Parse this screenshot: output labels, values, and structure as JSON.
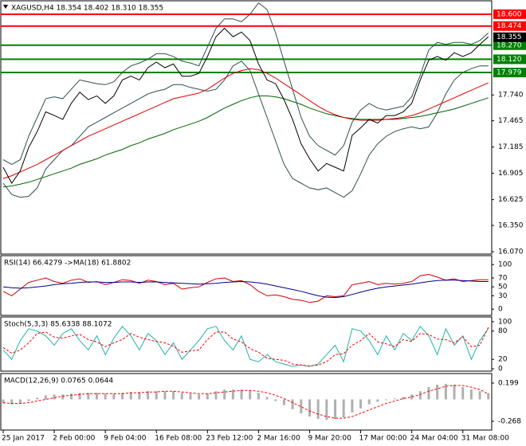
{
  "chart_data": [
    {
      "type": "line",
      "title": "XAGUSD,H4  18.354 18.402 18.310 18.355",
      "categories": [
        "25 Jan 2017",
        null,
        null,
        null,
        null,
        null,
        "2 Feb 00:00",
        null,
        null,
        null,
        null,
        null,
        "9 Feb 04:00",
        null,
        null,
        null,
        null,
        null,
        "16 Feb 08:00",
        null,
        null,
        null,
        null,
        null,
        "23 Feb 12:00",
        null,
        null,
        null,
        null,
        null,
        "2 Mar 16:00",
        null,
        null,
        null,
        null,
        null,
        "9 Mar 20:00",
        null,
        null,
        null,
        null,
        null,
        "17 Mar 00:00",
        null,
        null,
        null,
        null,
        null,
        "24 Mar 04:00",
        null,
        null,
        null,
        null,
        null,
        "31 Mar 08:00",
        null,
        null,
        null
      ],
      "ylim": [
        16.045,
        18.743
      ],
      "yticks": [
        {
          "value": 17.74,
          "label": "17.740"
        },
        17.465,
        17.185,
        16.905,
        16.625,
        {
          "value": 16.35,
          "label": "16.350"
        },
        {
          "value": 16.07,
          "label": "16.070"
        }
      ],
      "series": [
        {
          "color": "#2f4f4f",
          "values": [
            17.05,
            17.0,
            17.05,
            17.3,
            17.5,
            17.7,
            17.72,
            17.7,
            17.8,
            17.9,
            17.88,
            17.86,
            17.85,
            17.88,
            17.98,
            18.05,
            18.08,
            18.12,
            18.18,
            18.18,
            18.15,
            18.1,
            18.08,
            18.05,
            18.25,
            18.45,
            18.55,
            18.55,
            18.52,
            18.6,
            18.72,
            18.65,
            18.4,
            18.1,
            17.8,
            17.5,
            17.3,
            17.2,
            17.15,
            17.1,
            17.2,
            17.45,
            17.58,
            17.65,
            17.6,
            17.58,
            17.6,
            17.62,
            17.72,
            17.95,
            18.22,
            18.3,
            18.28,
            18.3,
            18.3,
            18.28,
            18.32,
            18.4
          ]
        },
        {
          "color": "#2f4f4f",
          "values": [
            16.8,
            16.68,
            16.65,
            16.66,
            16.75,
            16.95,
            17.05,
            17.15,
            17.2,
            17.3,
            17.4,
            17.45,
            17.5,
            17.55,
            17.6,
            17.65,
            17.7,
            17.75,
            17.78,
            17.8,
            17.85,
            17.85,
            17.82,
            17.8,
            17.78,
            17.8,
            17.9,
            18.05,
            18.1,
            18.0,
            17.75,
            17.5,
            17.25,
            17.0,
            16.85,
            16.8,
            16.75,
            16.73,
            16.75,
            16.7,
            16.65,
            16.72,
            16.9,
            17.1,
            17.22,
            17.3,
            17.35,
            17.38,
            17.4,
            17.38,
            17.4,
            17.55,
            17.75,
            17.9,
            17.98,
            18.02,
            18.05,
            18.05
          ]
        },
        {
          "color": "#006400",
          "values": [
            16.76,
            16.77,
            16.79,
            16.81,
            16.84,
            16.87,
            16.9,
            16.93,
            16.96,
            17.0,
            17.03,
            17.06,
            17.1,
            17.13,
            17.16,
            17.2,
            17.23,
            17.27,
            17.3,
            17.33,
            17.37,
            17.4,
            17.43,
            17.46,
            17.5,
            17.55,
            17.6,
            17.64,
            17.68,
            17.71,
            17.73,
            17.73,
            17.72,
            17.7,
            17.67,
            17.64,
            17.6,
            17.57,
            17.54,
            17.52,
            17.5,
            17.49,
            17.48,
            17.48,
            17.48,
            17.48,
            17.48,
            17.49,
            17.5,
            17.51,
            17.53,
            17.55,
            17.57,
            17.59,
            17.62,
            17.65,
            17.68,
            17.71
          ]
        },
        {
          "color": "#e00000",
          "values": [
            16.85,
            16.88,
            16.92,
            16.96,
            17.0,
            17.05,
            17.1,
            17.15,
            17.2,
            17.25,
            17.3,
            17.34,
            17.38,
            17.42,
            17.46,
            17.5,
            17.54,
            17.58,
            17.62,
            17.66,
            17.7,
            17.72,
            17.74,
            17.76,
            17.8,
            17.86,
            17.92,
            17.97,
            18.0,
            18.02,
            18.01,
            17.97,
            17.92,
            17.86,
            17.8,
            17.74,
            17.68,
            17.62,
            17.57,
            17.53,
            17.5,
            17.48,
            17.47,
            17.47,
            17.47,
            17.48,
            17.49,
            17.5,
            17.52,
            17.55,
            17.59,
            17.63,
            17.67,
            17.71,
            17.75,
            17.79,
            17.83,
            17.87
          ]
        },
        {
          "color": "#000000",
          "values": [
            16.97,
            16.8,
            16.93,
            17.18,
            17.35,
            17.56,
            17.52,
            17.48,
            17.65,
            17.77,
            17.69,
            17.73,
            17.65,
            17.73,
            17.9,
            17.94,
            17.9,
            18.03,
            18.09,
            18.03,
            18.07,
            17.94,
            17.94,
            17.97,
            18.15,
            18.36,
            18.45,
            18.36,
            18.41,
            18.32,
            18.07,
            17.9,
            17.86,
            17.69,
            17.48,
            17.22,
            17.06,
            16.93,
            17.01,
            16.97,
            16.93,
            17.31,
            17.39,
            17.48,
            17.44,
            17.52,
            17.52,
            17.56,
            17.65,
            17.9,
            18.11,
            18.15,
            18.11,
            18.19,
            18.15,
            18.19,
            18.28,
            18.36
          ]
        }
      ],
      "levels": [
        {
          "value": 18.6,
          "label": "18.600",
          "color": "#ff0000"
        },
        {
          "value": 18.474,
          "label": "18.474",
          "color": "#ff0000"
        },
        {
          "value": 18.27,
          "label": "18.270",
          "color": "#008000"
        },
        {
          "value": 18.12,
          "label": "18.120",
          "color": "#008000"
        },
        {
          "value": 17.979,
          "label": "17.979",
          "color": "#008000"
        }
      ],
      "last_price": {
        "value": 18.355,
        "label": "18.355",
        "color": "#000000"
      }
    },
    {
      "type": "line",
      "title": "RSI(14) 66.4279  ->MA(18) 61.8802",
      "ylim": [
        -14,
        120
      ],
      "yticks": [
        100,
        70,
        50,
        30,
        0
      ],
      "series": [
        {
          "color": "#d00000",
          "values": [
            40,
            30,
            45,
            60,
            65,
            70,
            62,
            58,
            65,
            68,
            60,
            62,
            55,
            60,
            66,
            64,
            58,
            65,
            62,
            55,
            58,
            45,
            48,
            50,
            60,
            68,
            70,
            62,
            64,
            55,
            40,
            30,
            32,
            28,
            22,
            20,
            15,
            18,
            30,
            28,
            30,
            55,
            58,
            62,
            55,
            58,
            56,
            58,
            62,
            75,
            78,
            72,
            65,
            68,
            62,
            64,
            66,
            66
          ]
        },
        {
          "color": "#00008b",
          "values": [
            50,
            48,
            47,
            48,
            50,
            52,
            55,
            57,
            58,
            60,
            61,
            61,
            60,
            60,
            61,
            61,
            60,
            61,
            61,
            60,
            59,
            58,
            57,
            56,
            57,
            58,
            60,
            61,
            62,
            61,
            59,
            56,
            52,
            48,
            44,
            40,
            35,
            30,
            27,
            26,
            28,
            33,
            38,
            43,
            47,
            50,
            52,
            54,
            56,
            59,
            62,
            64,
            65,
            65,
            64,
            63,
            62,
            62
          ]
        }
      ]
    },
    {
      "type": "line",
      "title": "Stoch(5,3,3) 85.6338 88.1072",
      "ylim": [
        -5,
        110
      ],
      "yticks": [
        100,
        80,
        20,
        0
      ],
      "series": [
        {
          "color": "#20b2aa",
          "values": [
            40,
            20,
            60,
            85,
            80,
            70,
            50,
            75,
            85,
            60,
            40,
            70,
            30,
            65,
            90,
            70,
            40,
            75,
            60,
            30,
            55,
            20,
            40,
            60,
            85,
            90,
            60,
            40,
            70,
            20,
            15,
            30,
            15,
            10,
            5,
            8,
            5,
            10,
            30,
            50,
            15,
            85,
            80,
            60,
            30,
            70,
            40,
            75,
            60,
            90,
            70,
            30,
            85,
            50,
            70,
            20,
            60,
            86
          ]
        },
        {
          "color": "#ff0000",
          "dash": true,
          "values": [
            45,
            33,
            40,
            55,
            75,
            78,
            67,
            65,
            70,
            73,
            62,
            57,
            47,
            55,
            62,
            75,
            67,
            62,
            58,
            55,
            48,
            35,
            38,
            40,
            62,
            78,
            78,
            63,
            57,
            43,
            35,
            22,
            20,
            18,
            10,
            8,
            6,
            8,
            15,
            30,
            32,
            50,
            60,
            75,
            57,
            53,
            47,
            62,
            58,
            75,
            73,
            63,
            62,
            55,
            68,
            47,
            50,
            88
          ]
        }
      ]
    },
    {
      "type": "macd",
      "title": "MACD(12,26,9) 0.0765 0.0644",
      "ylim": [
        -0.375,
        0.316
      ],
      "yticks": [
        0.199,
        -0.268
      ],
      "series": [
        {
          "kind": "histogram",
          "color": "#b0b0b0",
          "values": [
            -0.05,
            -0.06,
            -0.05,
            -0.02,
            0.02,
            0.05,
            0.06,
            0.06,
            0.07,
            0.08,
            0.08,
            0.08,
            0.07,
            0.07,
            0.08,
            0.09,
            0.09,
            0.1,
            0.1,
            0.1,
            0.1,
            0.08,
            0.07,
            0.06,
            0.07,
            0.1,
            0.12,
            0.12,
            0.12,
            0.11,
            0.08,
            0.03,
            -0.02,
            -0.07,
            -0.12,
            -0.17,
            -0.21,
            -0.24,
            -0.25,
            -0.24,
            -0.22,
            -0.16,
            -0.11,
            -0.06,
            -0.03,
            -0.01,
            0.01,
            0.03,
            0.06,
            0.1,
            0.15,
            0.18,
            0.19,
            0.18,
            0.15,
            0.12,
            0.1,
            0.0765
          ]
        },
        {
          "kind": "line",
          "color": "#ff0000",
          "dash": true,
          "values": [
            -0.04,
            -0.05,
            -0.05,
            -0.04,
            -0.02,
            0.0,
            0.02,
            0.04,
            0.05,
            0.06,
            0.07,
            0.07,
            0.07,
            0.07,
            0.07,
            0.08,
            0.08,
            0.09,
            0.09,
            0.1,
            0.1,
            0.09,
            0.08,
            0.07,
            0.07,
            0.08,
            0.09,
            0.1,
            0.11,
            0.11,
            0.1,
            0.08,
            0.05,
            0.01,
            -0.04,
            -0.09,
            -0.14,
            -0.18,
            -0.21,
            -0.23,
            -0.23,
            -0.21,
            -0.17,
            -0.13,
            -0.09,
            -0.05,
            -0.02,
            0.01,
            0.03,
            0.06,
            0.1,
            0.13,
            0.16,
            0.17,
            0.17,
            0.15,
            0.12,
            0.0644
          ]
        }
      ]
    }
  ]
}
